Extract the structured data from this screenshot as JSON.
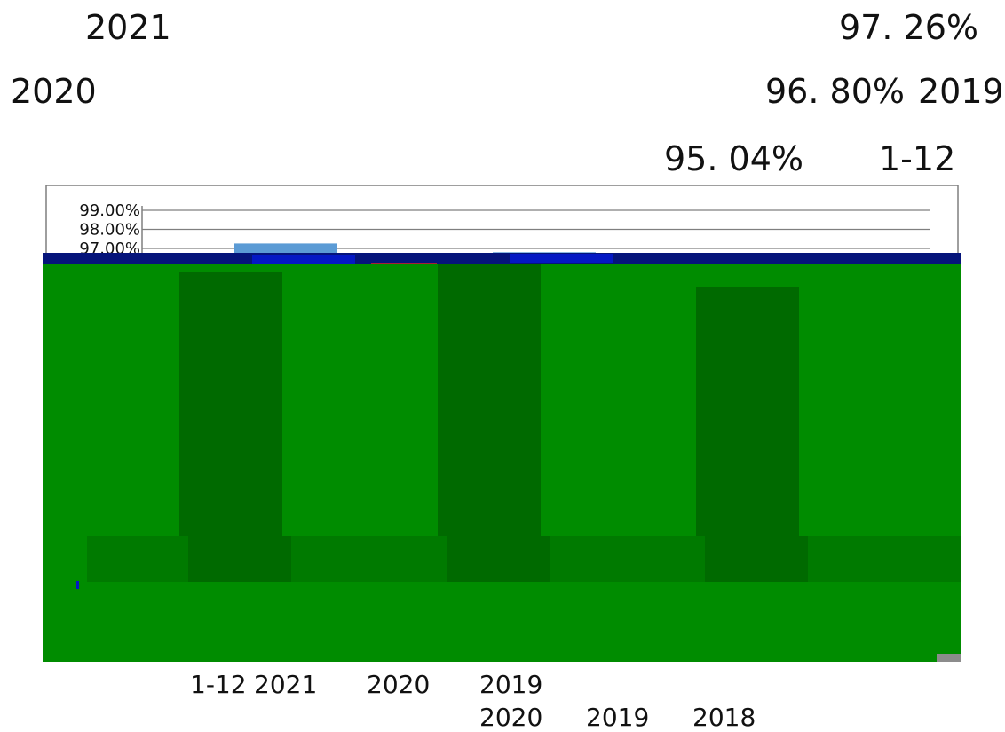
{
  "lines": {
    "line1_year": "2021",
    "line1_value": "97. 26%",
    "line2_year_left": "2020",
    "line2_value": "96. 80%",
    "line2_year_right": "2019",
    "line3_value": "95. 04%",
    "line3_period": "1-12"
  },
  "captions": {
    "row1_period": "1-12",
    "row1_year_a": "2021",
    "row1_year_b": "2020",
    "row1_year_c": "2019",
    "row2_year_a": "2020",
    "row2_year_b": "2019",
    "row2_year_c": "2018"
  },
  "colors": {
    "text": "#111111",
    "chart_frame": "#7f7f7f",
    "gridline": "#7f7f7f",
    "bar_light_blue": "#5b9bd5",
    "bar_blue": "#0418c4",
    "navy_band": "#05147a",
    "green_fill": "#008c00",
    "green_dark": "#006a00",
    "green_mid": "#007a00",
    "gray_corner": "#8c8c8c",
    "artifact_red": "#e02020"
  },
  "chart_data": {
    "type": "bar",
    "ytick_labels": [
      "99.00%",
      "98.00%",
      "97.00%"
    ],
    "ylim": [
      95,
      99
    ],
    "yticks": [
      99,
      98,
      97
    ],
    "grid": true,
    "series": [
      {
        "values": [
          97.26,
          96.8,
          95.04
        ]
      }
    ]
  }
}
